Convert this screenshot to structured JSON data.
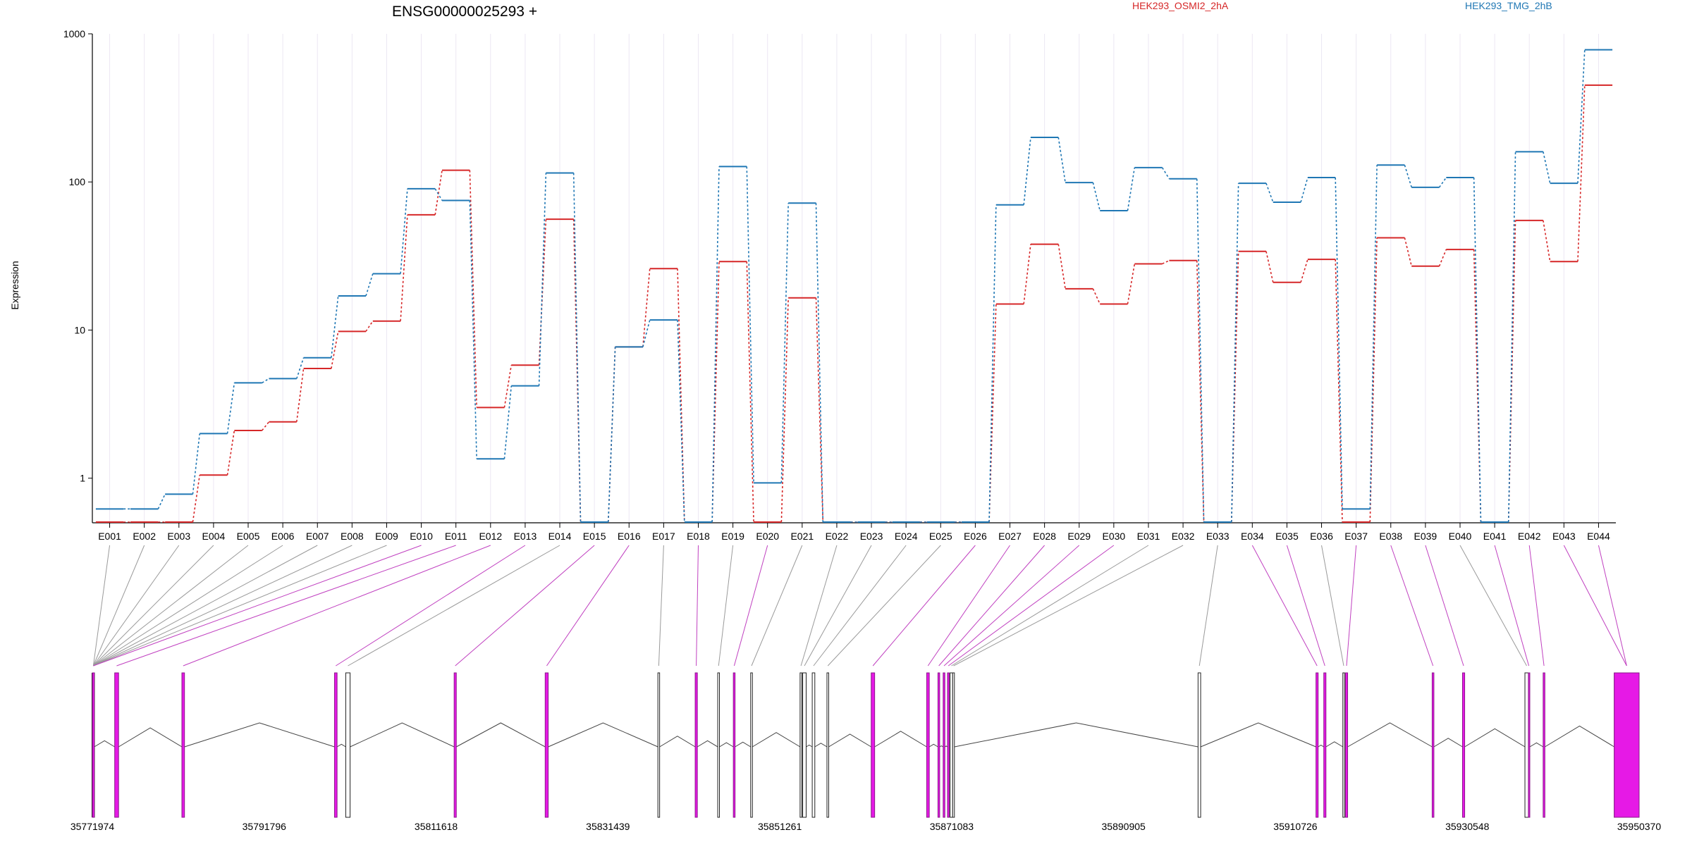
{
  "chart_data": {
    "type": "line",
    "title": "ENSG00000025293 +",
    "ylabel": "Expression",
    "yscale": "log",
    "ylim": [
      0.5,
      1000
    ],
    "yticks": [
      "1",
      "10",
      "100",
      "1000"
    ],
    "grid": "vertical",
    "legend_position": "top-right",
    "categories": [
      "E001",
      "E002",
      "E003",
      "E004",
      "E005",
      "E006",
      "E007",
      "E008",
      "E009",
      "E010",
      "E011",
      "E012",
      "E013",
      "E014",
      "E015",
      "E016",
      "E017",
      "E018",
      "E019",
      "E020",
      "E021",
      "E022",
      "E023",
      "E024",
      "E025",
      "E026",
      "E027",
      "E028",
      "E029",
      "E030",
      "E031",
      "E032",
      "E033",
      "E034",
      "E035",
      "E036",
      "E037",
      "E038",
      "E039",
      "E040",
      "E041",
      "E042",
      "E043",
      "E044"
    ],
    "series": [
      {
        "name": "HEK293_OSMI2_2hA",
        "color": "#d62728",
        "values": [
          0.5,
          0.5,
          0.5,
          1.05,
          2.1,
          2.4,
          5.5,
          9.8,
          11.5,
          60,
          120,
          3.0,
          5.8,
          56,
          0.5,
          7.7,
          26,
          0.5,
          29,
          0.5,
          16.5,
          0.5,
          0.5,
          0.5,
          0.5,
          0.5,
          15,
          38,
          19,
          15,
          28,
          29.5,
          0.5,
          34,
          21,
          30,
          0.5,
          42,
          27,
          35,
          0.5,
          55,
          29,
          450
        ]
      },
      {
        "name": "HEK293_TMG_2hB",
        "color": "#1f77b4",
        "values": [
          0.62,
          0.62,
          0.78,
          2.0,
          4.4,
          4.7,
          6.5,
          17,
          24,
          90,
          75,
          1.35,
          4.2,
          115,
          0.5,
          7.7,
          11.7,
          0.5,
          127,
          0.93,
          72,
          0.5,
          0.5,
          0.5,
          0.5,
          0.5,
          70,
          200,
          99,
          64,
          125,
          105,
          0.5,
          98,
          73,
          107,
          0.62,
          130,
          92,
          107,
          0.5,
          160,
          98,
          780
        ]
      }
    ],
    "gene_model": {
      "start": 35771974,
      "end": 35950370,
      "coordinate_labels": [
        "35771974",
        "35791796",
        "35811618",
        "35831439",
        "35851261",
        "35871083",
        "35890905",
        "35910726",
        "35930548",
        "35950370"
      ],
      "highlight_color": "#e619e6",
      "exons": [
        {
          "id": "E001",
          "start": 35771974,
          "end": 35772200,
          "highlight": false
        },
        {
          "id": "E002",
          "start": 35771974,
          "end": 35772200,
          "highlight": false
        },
        {
          "id": "E003",
          "start": 35771974,
          "end": 35772200,
          "highlight": false
        },
        {
          "id": "E004",
          "start": 35771974,
          "end": 35772200,
          "highlight": false
        },
        {
          "id": "E005",
          "start": 35771974,
          "end": 35772200,
          "highlight": false
        },
        {
          "id": "E006",
          "start": 35771974,
          "end": 35772200,
          "highlight": false
        },
        {
          "id": "E007",
          "start": 35771974,
          "end": 35772200,
          "highlight": false
        },
        {
          "id": "E008",
          "start": 35771974,
          "end": 35772200,
          "highlight": false
        },
        {
          "id": "E009",
          "start": 35771974,
          "end": 35772200,
          "highlight": false
        },
        {
          "id": "E010",
          "start": 35771974,
          "end": 35772200,
          "highlight": true
        },
        {
          "id": "E011",
          "start": 35774550,
          "end": 35775000,
          "highlight": true
        },
        {
          "id": "E012",
          "start": 35782300,
          "end": 35782600,
          "highlight": true
        },
        {
          "id": "E013",
          "start": 35799900,
          "end": 35800200,
          "highlight": true
        },
        {
          "id": "E014",
          "start": 35801200,
          "end": 35801700,
          "highlight": false
        },
        {
          "id": "E015",
          "start": 35813700,
          "end": 35813950,
          "highlight": true
        },
        {
          "id": "E016",
          "start": 35824200,
          "end": 35824550,
          "highlight": true
        },
        {
          "id": "E017",
          "start": 35837200,
          "end": 35837400,
          "highlight": false
        },
        {
          "id": "E018",
          "start": 35841500,
          "end": 35841750,
          "highlight": true
        },
        {
          "id": "E019",
          "start": 35844100,
          "end": 35844300,
          "highlight": false
        },
        {
          "id": "E020",
          "start": 35845900,
          "end": 35846100,
          "highlight": true
        },
        {
          "id": "E021",
          "start": 35847900,
          "end": 35848100,
          "highlight": false
        },
        {
          "id": "E022",
          "start": 35853600,
          "end": 35853800,
          "highlight": false
        },
        {
          "id": "E023",
          "start": 35853900,
          "end": 35854300,
          "highlight": false
        },
        {
          "id": "E024",
          "start": 35855000,
          "end": 35855300,
          "highlight": false
        },
        {
          "id": "E025",
          "start": 35856700,
          "end": 35856900,
          "highlight": false
        },
        {
          "id": "E026",
          "start": 35861800,
          "end": 35862200,
          "highlight": true
        },
        {
          "id": "E027",
          "start": 35868200,
          "end": 35868500,
          "highlight": true
        },
        {
          "id": "E028",
          "start": 35869500,
          "end": 35869700,
          "highlight": true
        },
        {
          "id": "E029",
          "start": 35870100,
          "end": 35870300,
          "highlight": true
        },
        {
          "id": "E030",
          "start": 35870600,
          "end": 35870800,
          "highlight": true
        },
        {
          "id": "E031",
          "start": 35870900,
          "end": 35871200,
          "highlight": false
        },
        {
          "id": "E032",
          "start": 35871200,
          "end": 35871400,
          "highlight": false
        },
        {
          "id": "E033",
          "start": 35899500,
          "end": 35899800,
          "highlight": false
        },
        {
          "id": "E034",
          "start": 35913100,
          "end": 35913350,
          "highlight": true
        },
        {
          "id": "E035",
          "start": 35914000,
          "end": 35914250,
          "highlight": true
        },
        {
          "id": "E036",
          "start": 35916200,
          "end": 35916400,
          "highlight": false
        },
        {
          "id": "E037",
          "start": 35916500,
          "end": 35916750,
          "highlight": true
        },
        {
          "id": "E038",
          "start": 35926500,
          "end": 35926700,
          "highlight": true
        },
        {
          "id": "E039",
          "start": 35930000,
          "end": 35930250,
          "highlight": true
        },
        {
          "id": "E040",
          "start": 35937200,
          "end": 35937600,
          "highlight": false
        },
        {
          "id": "E041",
          "start": 35937600,
          "end": 35937700,
          "highlight": true
        },
        {
          "id": "E042",
          "start": 35939300,
          "end": 35939500,
          "highlight": true
        },
        {
          "id": "E043",
          "start": 35947500,
          "end": 35950370,
          "highlight": true
        },
        {
          "id": "E044",
          "start": 35947500,
          "end": 35950370,
          "highlight": true
        }
      ]
    }
  }
}
